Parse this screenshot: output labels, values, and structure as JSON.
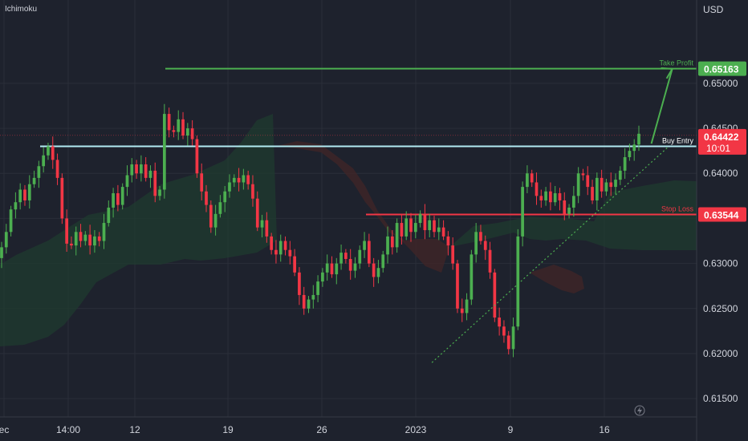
{
  "header": {
    "indicator_label": "Ichimoku",
    "currency_label": "USD"
  },
  "colors": {
    "background": "#1e222d",
    "grid": "#2a2e39",
    "axis_text": "#d1d4dc",
    "up": "#26a69a",
    "up_bright": "#4caf50",
    "down": "#f23645",
    "entry_line": "#b2ebf2",
    "take_profit": "#4caf50",
    "stop_loss": "#f23645",
    "cloud_green": "#1f3b2f",
    "cloud_red": "#3d2428"
  },
  "chart_data": {
    "type": "candlestick",
    "x_tick_labels": [
      "ec",
      "14:00",
      "12",
      "19",
      "26",
      "2023",
      "9",
      "16"
    ],
    "y_tick_labels": [
      "0.65000",
      "0.64500",
      "0.64000",
      "0.63500",
      "0.63000",
      "0.62500",
      "0.62000",
      "0.61500"
    ],
    "ylim": [
      0.6135,
      0.658
    ],
    "levels": [
      {
        "name": "Take Profit",
        "value": 0.65163,
        "label": "0.65163",
        "color": "#4caf50"
      },
      {
        "name": "Buy Entry",
        "value": 0.643,
        "label": "",
        "color": "#b2ebf2"
      },
      {
        "name": "Stop Loss",
        "value": 0.63544,
        "label": "0.63544",
        "color": "#f23645"
      }
    ],
    "last_price": {
      "value": 0.64422,
      "label": "0.64422",
      "countdown": "10:01"
    },
    "trendline": {
      "from": [
        0.62,
        0.619
      ],
      "to": [
        0.96,
        0.643
      ]
    },
    "projection": {
      "from": [
        0.935,
        0.6433
      ],
      "to": [
        0.965,
        0.6516
      ]
    },
    "series": [
      {
        "name": "",
        "close": [
          0.6318,
          0.6335,
          0.636,
          0.6368,
          0.6382,
          0.637,
          0.6388,
          0.6395,
          0.6408,
          0.642,
          0.643,
          0.6415,
          0.6395,
          0.635,
          0.6322,
          0.632,
          0.6335,
          0.6325,
          0.6332,
          0.632,
          0.633,
          0.6325,
          0.6345,
          0.6362,
          0.6378,
          0.6365,
          0.6385,
          0.6398,
          0.641,
          0.64,
          0.641,
          0.6395,
          0.6403,
          0.6375,
          0.6382,
          0.6466,
          0.6448,
          0.6446,
          0.646,
          0.6442,
          0.645,
          0.6438,
          0.64,
          0.638,
          0.6365,
          0.634,
          0.6355,
          0.6368,
          0.638,
          0.639,
          0.6395,
          0.639,
          0.6398,
          0.6388,
          0.6372,
          0.634,
          0.6348,
          0.633,
          0.6315,
          0.631,
          0.6325,
          0.6315,
          0.6308,
          0.629,
          0.6265,
          0.625,
          0.626,
          0.6265,
          0.628,
          0.629,
          0.63,
          0.6288,
          0.63,
          0.6312,
          0.6305,
          0.6292,
          0.63,
          0.6315,
          0.6325,
          0.63,
          0.6285,
          0.6295,
          0.631,
          0.633,
          0.6318,
          0.6345,
          0.633,
          0.635,
          0.6335,
          0.6345,
          0.6355,
          0.6337,
          0.6348,
          0.6335,
          0.634,
          0.633,
          0.632,
          0.63,
          0.625,
          0.6245,
          0.626,
          0.631,
          0.6335,
          0.6325,
          0.6315,
          0.629,
          0.624,
          0.623,
          0.622,
          0.6205,
          0.623,
          0.633,
          0.6385,
          0.64,
          0.639,
          0.6375,
          0.637,
          0.638,
          0.6368,
          0.6378,
          0.637,
          0.6355,
          0.6362,
          0.6375,
          0.64,
          0.6398,
          0.6385,
          0.637,
          0.6395,
          0.638,
          0.639,
          0.6385,
          0.6393,
          0.6403,
          0.6418,
          0.6425,
          0.6432,
          0.6444
        ]
      }
    ]
  }
}
